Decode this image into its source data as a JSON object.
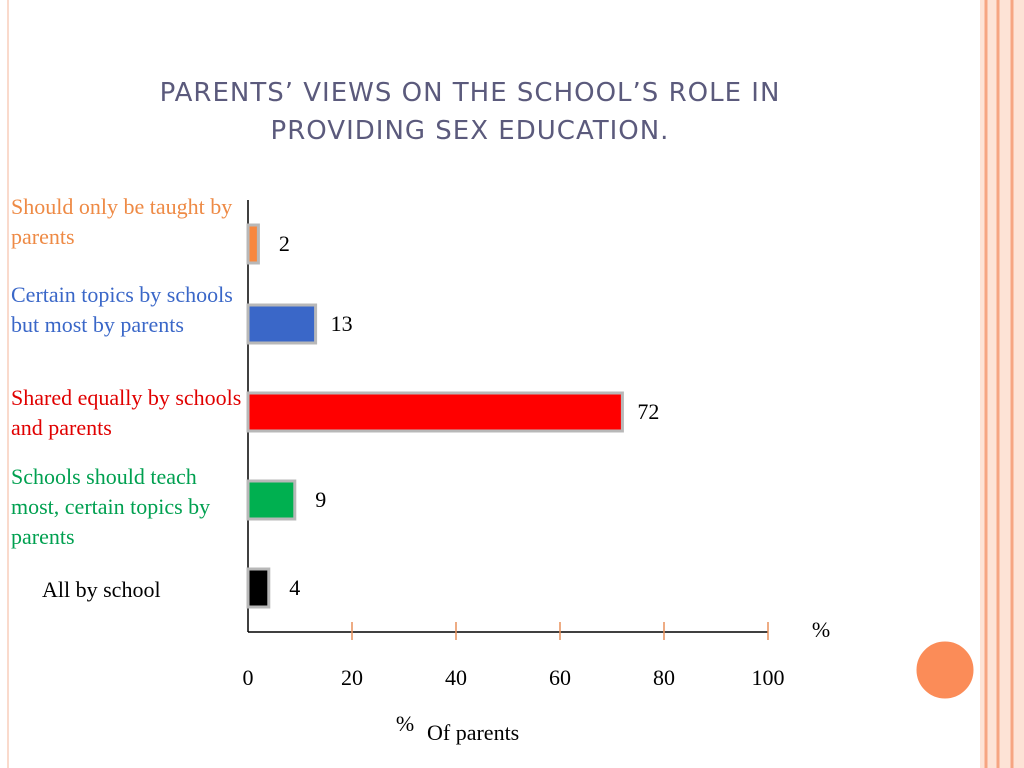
{
  "chart_data": {
    "type": "bar",
    "orientation": "horizontal",
    "title": "PARENTS’ VIEWS ON THE SCHOOL’S ROLE IN PROVIDING SEX EDUCATION.",
    "categories": [
      "Should only be taught by parents",
      "Certain topics by schools but most by parents",
      "Shared equally by schools and parents",
      "Schools should teach most, certain topics by parents",
      "All by school"
    ],
    "values": [
      2,
      13,
      72,
      9,
      4
    ],
    "colors": [
      "#f7873f",
      "#3a67c8",
      "#ff0000",
      "#00b050",
      "#000000"
    ],
    "label_colors": [
      "#ee8a45",
      "#3a67c8",
      "#e00000",
      "#00a050",
      "#000000"
    ],
    "xlim": [
      0,
      100
    ],
    "xticks": [
      0,
      20,
      40,
      60,
      80,
      100
    ],
    "x_unit": "%",
    "xlabel_parts": [
      "%",
      "Of parents"
    ]
  }
}
